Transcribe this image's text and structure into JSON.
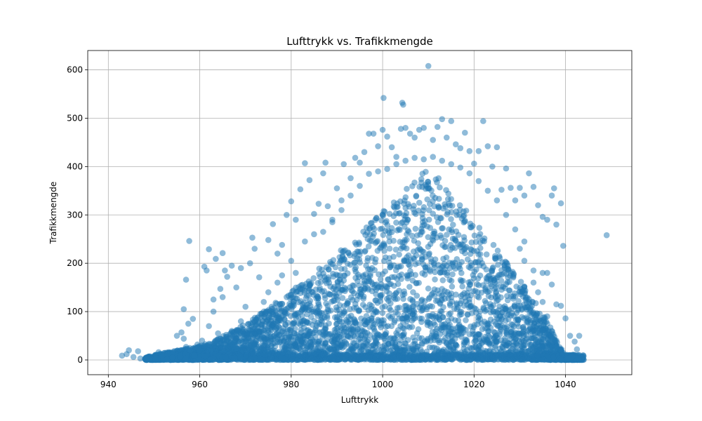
{
  "chart_data": {
    "type": "scatter",
    "title": "Lufttrykk vs. Trafikkmengde",
    "xlabel": "Lufttrykk",
    "ylabel": "Trafikkmengde",
    "xlim": [
      935.5,
      1054.5
    ],
    "ylim": [
      -30.5,
      640
    ],
    "xticks": [
      940,
      960,
      980,
      1000,
      1020,
      1040
    ],
    "yticks": [
      0,
      100,
      200,
      300,
      400,
      500,
      600
    ],
    "grid": true,
    "marker_color": "#1f77b4",
    "marker_alpha": 0.5,
    "series": [
      {
        "points": [
          [
            943,
            9
          ],
          [
            944,
            12
          ],
          [
            944.5,
            20
          ],
          [
            945.5,
            6
          ],
          [
            946.5,
            18
          ],
          [
            947,
            3
          ],
          [
            948.5,
            1
          ],
          [
            951,
            16
          ],
          [
            952,
            2
          ],
          [
            953,
            12
          ],
          [
            954,
            5
          ],
          [
            955,
            50
          ],
          [
            956,
            57
          ],
          [
            956.5,
            44
          ],
          [
            957,
            27
          ],
          [
            957.5,
            75
          ],
          [
            957.7,
            246
          ],
          [
            958.5,
            85
          ],
          [
            959.5,
            32
          ],
          [
            960.5,
            40
          ],
          [
            956.5,
            105
          ],
          [
            957,
            166
          ],
          [
            961,
            193
          ],
          [
            961.5,
            185
          ],
          [
            962,
            229
          ],
          [
            963,
            125
          ],
          [
            963.5,
            209
          ],
          [
            964.5,
            147
          ],
          [
            965,
            221
          ],
          [
            965.5,
            185
          ],
          [
            966,
            172
          ],
          [
            967,
            195
          ],
          [
            968,
            150
          ],
          [
            969,
            190
          ],
          [
            970,
            110
          ],
          [
            971,
            200
          ],
          [
            971.5,
            253
          ],
          [
            972,
            230
          ],
          [
            973,
            171
          ],
          [
            974,
            120
          ],
          [
            975,
            248
          ],
          [
            976,
            281
          ],
          [
            977,
            220
          ],
          [
            978,
            238
          ],
          [
            979,
            300
          ],
          [
            980,
            328
          ],
          [
            981,
            290
          ],
          [
            982,
            353
          ],
          [
            983,
            407
          ],
          [
            984,
            372
          ],
          [
            985,
            302
          ],
          [
            986,
            323
          ],
          [
            987,
            386
          ],
          [
            987.5,
            408
          ],
          [
            988,
            318
          ],
          [
            989,
            290
          ],
          [
            990,
            355
          ],
          [
            991,
            330
          ],
          [
            991.5,
            405
          ],
          [
            993,
            376
          ],
          [
            994,
            418
          ],
          [
            995,
            408
          ],
          [
            996,
            430
          ],
          [
            997,
            468
          ],
          [
            998,
            468
          ],
          [
            999,
            442
          ],
          [
            1000,
            476
          ],
          [
            1000.2,
            542
          ],
          [
            1001,
            462
          ],
          [
            1002,
            440
          ],
          [
            1003,
            420
          ],
          [
            1004,
            478
          ],
          [
            1004.3,
            532
          ],
          [
            1004.5,
            528
          ],
          [
            1005,
            480
          ],
          [
            1006,
            468
          ],
          [
            1007,
            460
          ],
          [
            1008,
            476
          ],
          [
            1009,
            480
          ],
          [
            1010,
            608
          ],
          [
            1011,
            455
          ],
          [
            1012,
            482
          ],
          [
            1013,
            498
          ],
          [
            1014,
            460
          ],
          [
            1015,
            494
          ],
          [
            1016,
            446
          ],
          [
            1017,
            438
          ],
          [
            1018,
            470
          ],
          [
            1019,
            432
          ],
          [
            1020,
            406
          ],
          [
            1021,
            432
          ],
          [
            1022,
            494
          ],
          [
            1023,
            442
          ],
          [
            1024,
            400
          ],
          [
            1025,
            440
          ],
          [
            1026,
            352
          ],
          [
            1027,
            396
          ],
          [
            1028,
            356
          ],
          [
            1029,
            330
          ],
          [
            1030,
            356
          ],
          [
            1031,
            340
          ],
          [
            1032,
            386
          ],
          [
            1033,
            358
          ],
          [
            1034,
            320
          ],
          [
            1035,
            296
          ],
          [
            1036,
            290
          ],
          [
            1037,
            340
          ],
          [
            1037.5,
            355
          ],
          [
            1038,
            280
          ],
          [
            1039,
            324
          ],
          [
            1039.5,
            236
          ],
          [
            1049,
            258
          ],
          [
            1036,
            180
          ],
          [
            1037,
            156
          ],
          [
            1038,
            115
          ],
          [
            1039,
            112
          ],
          [
            1040,
            86
          ],
          [
            1041,
            50
          ],
          [
            1042,
            38
          ],
          [
            1043,
            50
          ],
          [
            1042.5,
            22
          ],
          [
            1041.5,
            8
          ],
          [
            1040.5,
            3
          ],
          [
            1039,
            0
          ],
          [
            1035,
            180
          ],
          [
            1034,
            140
          ],
          [
            1033,
            185
          ],
          [
            1032,
            120
          ],
          [
            1031,
            245
          ],
          [
            1030,
            230
          ],
          [
            966,
            40
          ],
          [
            967,
            60
          ],
          [
            968,
            45
          ],
          [
            969,
            80
          ],
          [
            970,
            30
          ],
          [
            972,
            65
          ],
          [
            974,
            90
          ],
          [
            975,
            140
          ],
          [
            976,
            95
          ],
          [
            977,
            160
          ],
          [
            978,
            175
          ],
          [
            979,
            130
          ],
          [
            980,
            205
          ],
          [
            981,
            180
          ],
          [
            983,
            245
          ],
          [
            985,
            260
          ],
          [
            987,
            265
          ],
          [
            989,
            285
          ],
          [
            991,
            310
          ],
          [
            993,
            340
          ],
          [
            995,
            360
          ],
          [
            997,
            385
          ],
          [
            999,
            390
          ],
          [
            1001,
            395
          ],
          [
            1003,
            405
          ],
          [
            1005,
            412
          ],
          [
            1007,
            418
          ],
          [
            1009,
            415
          ],
          [
            1011,
            420
          ],
          [
            1013,
            412
          ],
          [
            1015,
            405
          ],
          [
            1017,
            398
          ],
          [
            1019,
            386
          ],
          [
            1021,
            370
          ],
          [
            1023,
            350
          ],
          [
            1025,
            330
          ],
          [
            1027,
            300
          ],
          [
            1029,
            270
          ],
          [
            1031,
            205
          ],
          [
            1033,
            160
          ],
          [
            1035,
            120
          ],
          [
            1036,
            90
          ],
          [
            1037,
            60
          ],
          [
            1038,
            40
          ],
          [
            962,
            70
          ],
          [
            963,
            100
          ],
          [
            964,
            55
          ],
          [
            965,
            130
          ],
          [
            960,
            20
          ],
          [
            961,
            8
          ]
        ]
      }
    ]
  }
}
